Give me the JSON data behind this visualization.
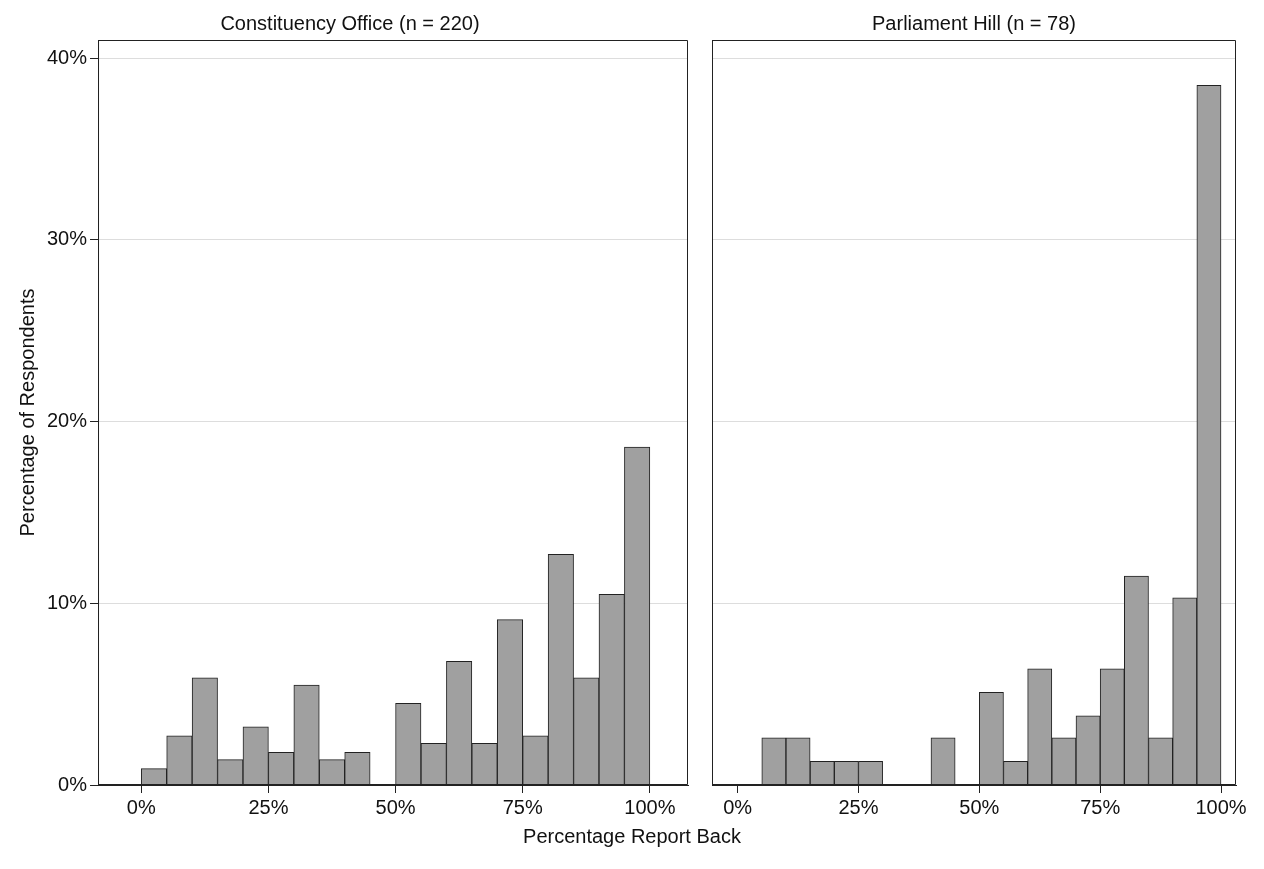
{
  "chart_data": [
    {
      "type": "histogram",
      "title": "Constituency Office (n = 220)",
      "xlabel": "Percentage Report Back",
      "ylabel": "Percentage of Respondents",
      "color": "#a0a0a0",
      "bins": [
        0,
        5,
        10,
        15,
        20,
        25,
        30,
        35,
        40,
        45,
        50,
        55,
        60,
        65,
        70,
        75,
        80,
        85,
        90,
        95,
        100
      ],
      "values": [
        0.9,
        2.7,
        5.9,
        1.4,
        3.2,
        1.8,
        5.5,
        1.4,
        1.8,
        0,
        4.5,
        2.3,
        6.8,
        2.3,
        9.1,
        2.7,
        12.7,
        5.9,
        10.5,
        18.6
      ],
      "xlim": [
        -8.5,
        107.5
      ],
      "xticks": [
        {
          "value": 0,
          "label": "0%"
        },
        {
          "value": 25,
          "label": "25%"
        },
        {
          "value": 50,
          "label": "50%"
        },
        {
          "value": 75,
          "label": "75%"
        },
        {
          "value": 100,
          "label": "100%"
        }
      ],
      "ylim": [
        0,
        41
      ],
      "yticks": [
        {
          "value": 0,
          "label": "0%"
        },
        {
          "value": 10,
          "label": "10%"
        },
        {
          "value": 20,
          "label": "20%"
        },
        {
          "value": 30,
          "label": "30%"
        },
        {
          "value": 40,
          "label": "40%"
        }
      ],
      "grid": "y"
    },
    {
      "type": "histogram",
      "title": "Parliament Hill (n = 78)",
      "color": "#a0a0a0",
      "bins": [
        0,
        5,
        10,
        15,
        20,
        25,
        30,
        35,
        40,
        45,
        50,
        55,
        60,
        65,
        70,
        75,
        80,
        85,
        90,
        95,
        100
      ],
      "values": [
        0,
        2.6,
        2.6,
        1.3,
        1.3,
        1.3,
        0,
        0,
        2.6,
        0,
        5.1,
        1.3,
        6.4,
        2.6,
        3.8,
        6.4,
        11.5,
        2.6,
        10.3,
        38.5
      ],
      "xlim": [
        -5.3,
        103.1
      ],
      "xticks": [
        {
          "value": 0,
          "label": "0%"
        },
        {
          "value": 25,
          "label": "25%"
        },
        {
          "value": 50,
          "label": "50%"
        },
        {
          "value": 75,
          "label": "75%"
        },
        {
          "value": 100,
          "label": "100%"
        }
      ],
      "ylim": [
        0,
        41
      ],
      "yticks": [
        {
          "value": 0,
          "label": null
        },
        {
          "value": 10,
          "label": null
        },
        {
          "value": 20,
          "label": null
        },
        {
          "value": 30,
          "label": null
        },
        {
          "value": 40,
          "label": null
        }
      ],
      "grid": "y",
      "tick_labels": "x"
    }
  ]
}
